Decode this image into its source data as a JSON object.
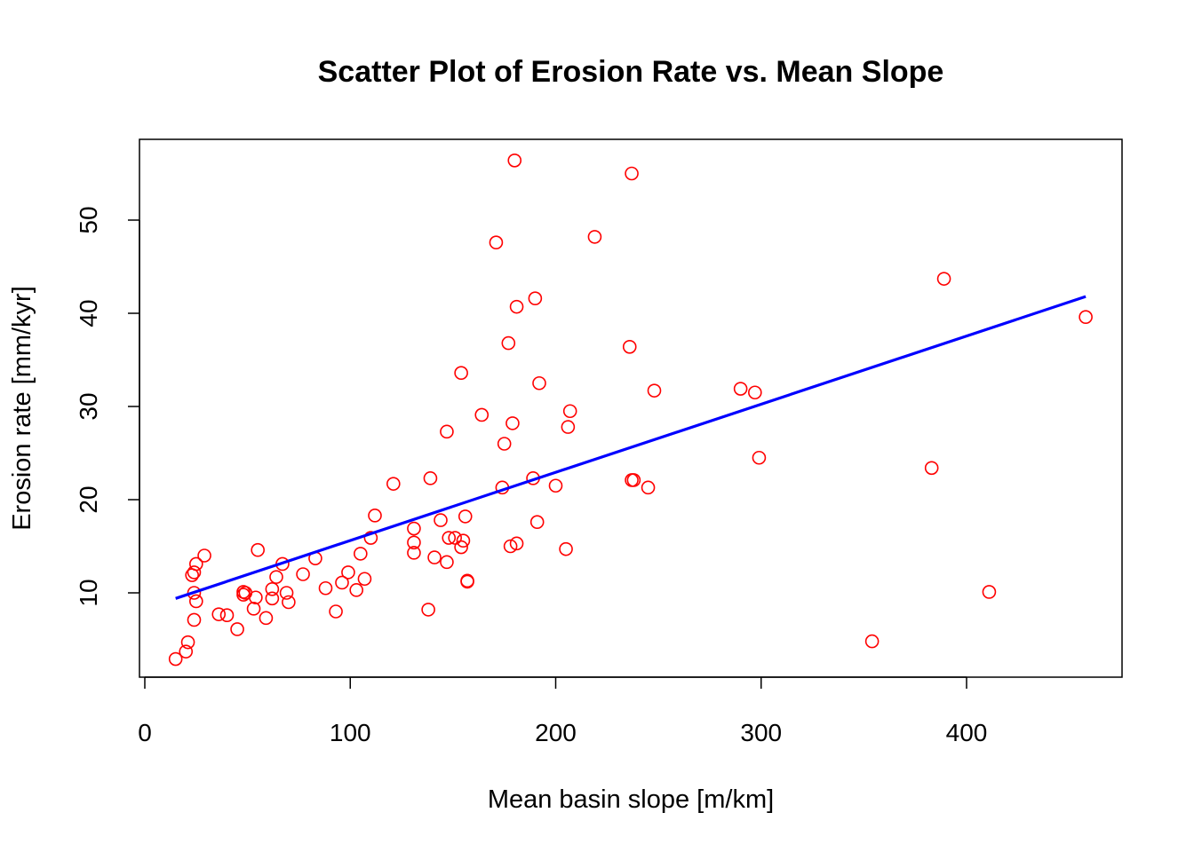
{
  "chart_data": {
    "type": "scatter",
    "title": "Scatter Plot of Erosion Rate vs. Mean Slope",
    "xlabel": "Mean basin slope [m/km]",
    "ylabel": "Erosion rate [mm/kyr]",
    "xlim": [
      0,
      460
    ],
    "ylim": [
      3,
      57
    ],
    "x_ticks": [
      0,
      100,
      200,
      300,
      400
    ],
    "y_ticks": [
      10,
      20,
      30,
      40,
      50
    ],
    "grid": false,
    "legend": "none",
    "colors": {
      "points": "#ff0000",
      "fit_line": "#0000ff",
      "axes": "#000000"
    },
    "points": [
      {
        "x": 15,
        "y": 2.9
      },
      {
        "x": 20,
        "y": 3.7
      },
      {
        "x": 21,
        "y": 4.7
      },
      {
        "x": 23,
        "y": 11.9
      },
      {
        "x": 24,
        "y": 7.1
      },
      {
        "x": 24,
        "y": 12.2
      },
      {
        "x": 24,
        "y": 10.0
      },
      {
        "x": 25,
        "y": 13.1
      },
      {
        "x": 25,
        "y": 9.1
      },
      {
        "x": 29,
        "y": 14.0
      },
      {
        "x": 36,
        "y": 7.7
      },
      {
        "x": 40,
        "y": 7.6
      },
      {
        "x": 45,
        "y": 6.1
      },
      {
        "x": 48,
        "y": 10.1
      },
      {
        "x": 48,
        "y": 9.8
      },
      {
        "x": 49,
        "y": 10.0
      },
      {
        "x": 53,
        "y": 8.3
      },
      {
        "x": 54,
        "y": 9.5
      },
      {
        "x": 55,
        "y": 14.6
      },
      {
        "x": 59,
        "y": 7.3
      },
      {
        "x": 62,
        "y": 9.4
      },
      {
        "x": 62,
        "y": 10.4
      },
      {
        "x": 64,
        "y": 11.7
      },
      {
        "x": 67,
        "y": 13.1
      },
      {
        "x": 69,
        "y": 10.0
      },
      {
        "x": 70,
        "y": 9.0
      },
      {
        "x": 77,
        "y": 12.0
      },
      {
        "x": 83,
        "y": 13.7
      },
      {
        "x": 88,
        "y": 10.5
      },
      {
        "x": 93,
        "y": 8.0
      },
      {
        "x": 96,
        "y": 11.1
      },
      {
        "x": 99,
        "y": 12.2
      },
      {
        "x": 103,
        "y": 10.3
      },
      {
        "x": 105,
        "y": 14.2
      },
      {
        "x": 107,
        "y": 11.5
      },
      {
        "x": 110,
        "y": 15.9
      },
      {
        "x": 112,
        "y": 18.3
      },
      {
        "x": 121,
        "y": 21.7
      },
      {
        "x": 131,
        "y": 16.9
      },
      {
        "x": 131,
        "y": 15.4
      },
      {
        "x": 131,
        "y": 14.3
      },
      {
        "x": 138,
        "y": 8.2
      },
      {
        "x": 139,
        "y": 22.3
      },
      {
        "x": 141,
        "y": 13.8
      },
      {
        "x": 144,
        "y": 17.8
      },
      {
        "x": 147,
        "y": 27.3
      },
      {
        "x": 147,
        "y": 13.3
      },
      {
        "x": 148,
        "y": 15.9
      },
      {
        "x": 151,
        "y": 15.9
      },
      {
        "x": 154,
        "y": 33.6
      },
      {
        "x": 154,
        "y": 14.9
      },
      {
        "x": 155,
        "y": 15.6
      },
      {
        "x": 156,
        "y": 18.2
      },
      {
        "x": 157,
        "y": 11.3
      },
      {
        "x": 157,
        "y": 11.2
      },
      {
        "x": 164,
        "y": 29.1
      },
      {
        "x": 171,
        "y": 47.6
      },
      {
        "x": 174,
        "y": 21.3
      },
      {
        "x": 175,
        "y": 26.0
      },
      {
        "x": 177,
        "y": 36.8
      },
      {
        "x": 178,
        "y": 15.0
      },
      {
        "x": 179,
        "y": 28.2
      },
      {
        "x": 180,
        "y": 56.4
      },
      {
        "x": 181,
        "y": 40.7
      },
      {
        "x": 181,
        "y": 15.3
      },
      {
        "x": 189,
        "y": 22.3
      },
      {
        "x": 190,
        "y": 41.6
      },
      {
        "x": 191,
        "y": 17.6
      },
      {
        "x": 192,
        "y": 32.5
      },
      {
        "x": 200,
        "y": 21.5
      },
      {
        "x": 205,
        "y": 14.7
      },
      {
        "x": 206,
        "y": 27.8
      },
      {
        "x": 207,
        "y": 29.5
      },
      {
        "x": 219,
        "y": 48.2
      },
      {
        "x": 236,
        "y": 36.4
      },
      {
        "x": 237,
        "y": 55.0
      },
      {
        "x": 237,
        "y": 22.1
      },
      {
        "x": 238,
        "y": 22.1
      },
      {
        "x": 245,
        "y": 21.3
      },
      {
        "x": 248,
        "y": 31.7
      },
      {
        "x": 290,
        "y": 31.9
      },
      {
        "x": 297,
        "y": 31.5
      },
      {
        "x": 299,
        "y": 24.5
      },
      {
        "x": 354,
        "y": 4.8
      },
      {
        "x": 383,
        "y": 23.4
      },
      {
        "x": 389,
        "y": 43.7
      },
      {
        "x": 411,
        "y": 10.1
      },
      {
        "x": 458,
        "y": 39.6
      }
    ],
    "fit_line": {
      "x": [
        15,
        458
      ],
      "y": [
        9.4,
        41.8
      ]
    }
  }
}
